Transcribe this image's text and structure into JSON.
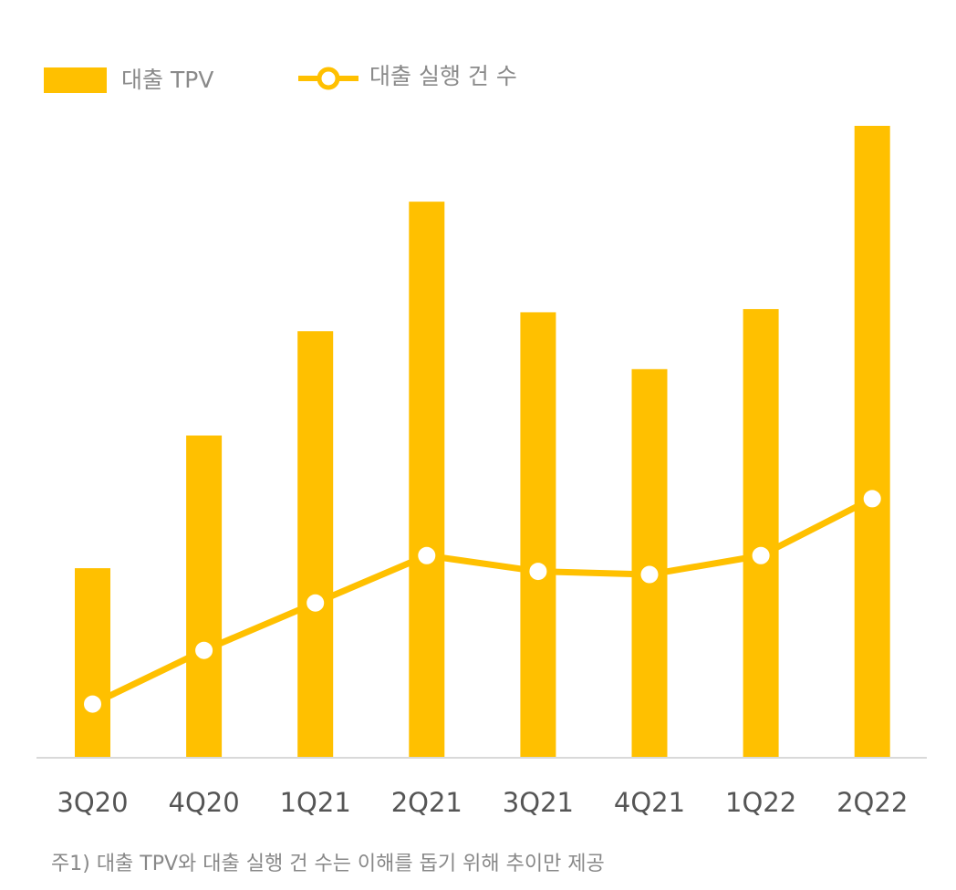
{
  "colors": {
    "accent": "#FFC000",
    "axis": "#d9d9d9",
    "marker_fill": "#ffffff"
  },
  "legend": {
    "bar_label": "대출 TPV",
    "line_label": "대출 실행 건 수"
  },
  "footnote": "주1) 대출 TPV와 대출 실행 건 수는 이해를 돕기 위해 추이만 제공",
  "chart_data": {
    "type": "bar",
    "title": "",
    "xlabel": "",
    "ylabel": "",
    "categories": [
      "3Q20",
      "4Q20",
      "1Q21",
      "2Q21",
      "3Q21",
      "4Q21",
      "1Q22",
      "2Q22"
    ],
    "ylim": [
      0,
      100
    ],
    "series": [
      {
        "name": "대출 TPV",
        "type": "bar",
        "values": [
          30,
          51,
          67.5,
          88,
          70.5,
          61.5,
          71,
          100
        ]
      },
      {
        "name": "대출 실행 건 수",
        "type": "line",
        "values": [
          8.5,
          17,
          24.5,
          32,
          29.5,
          29,
          32,
          41
        ]
      }
    ],
    "grid": false,
    "legend_position": "top-left"
  }
}
